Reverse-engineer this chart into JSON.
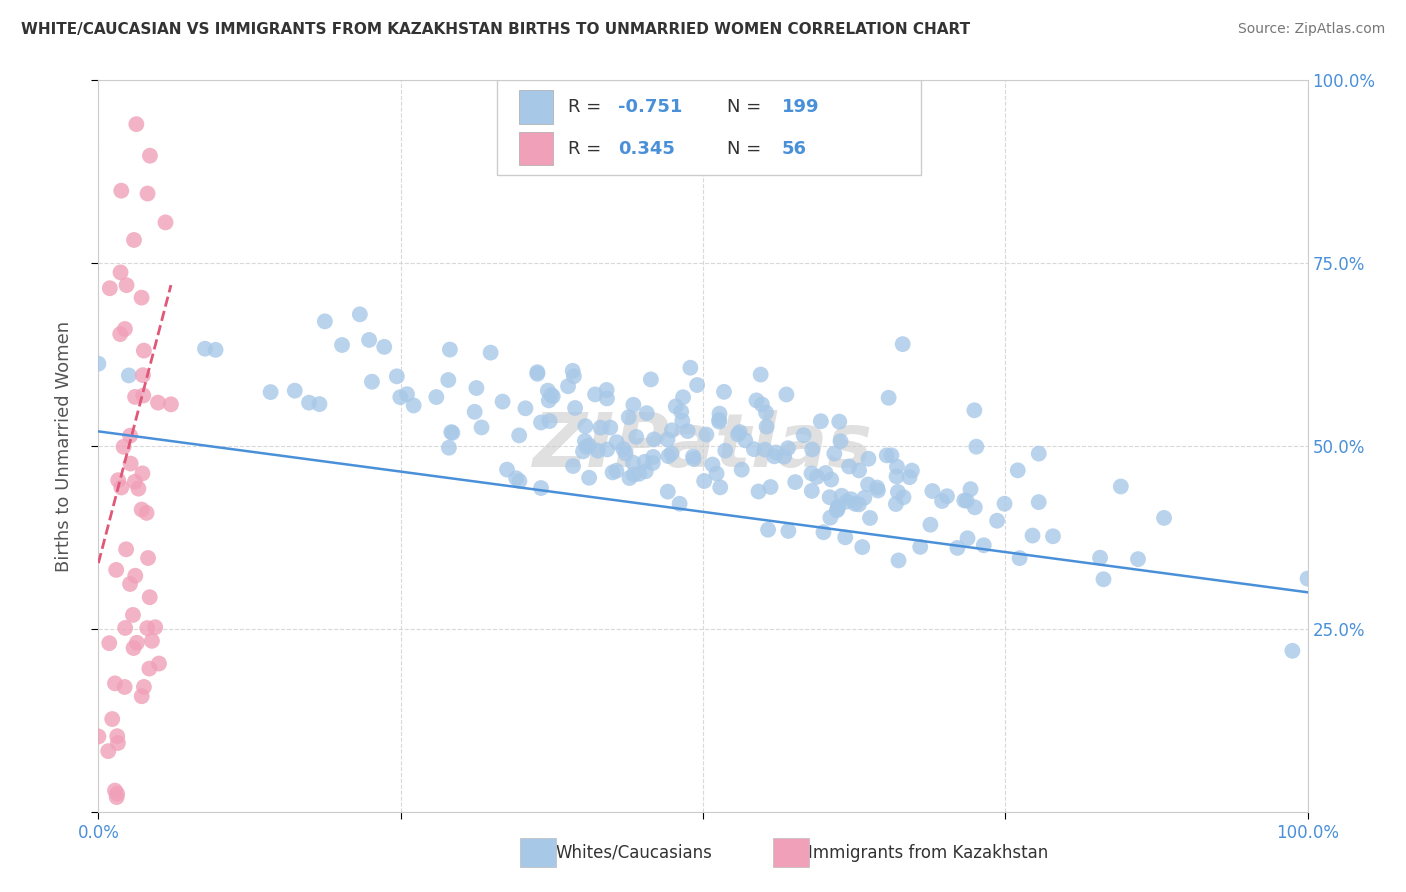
{
  "title": "WHITE/CAUCASIAN VS IMMIGRANTS FROM KAZAKHSTAN BIRTHS TO UNMARRIED WOMEN CORRELATION CHART",
  "source": "Source: ZipAtlas.com",
  "ylabel": "Births to Unmarried Women",
  "watermark": "ZIPatlas",
  "blue_color": "#a8c8e8",
  "pink_color": "#f0a0b8",
  "blue_line_color": "#4a90d9",
  "pink_line_color": "#e05878",
  "axis_label_color": "#4a90d9",
  "grid_color": "#d0d0d0",
  "background_color": "#ffffff",
  "blue_R": -0.751,
  "blue_N": 199,
  "pink_R": 0.345,
  "pink_N": 56,
  "xmin": 0.0,
  "xmax": 1.0,
  "ymin": 0.0,
  "ymax": 1.0,
  "blue_scatter_seed": 42,
  "pink_scatter_seed": 7
}
